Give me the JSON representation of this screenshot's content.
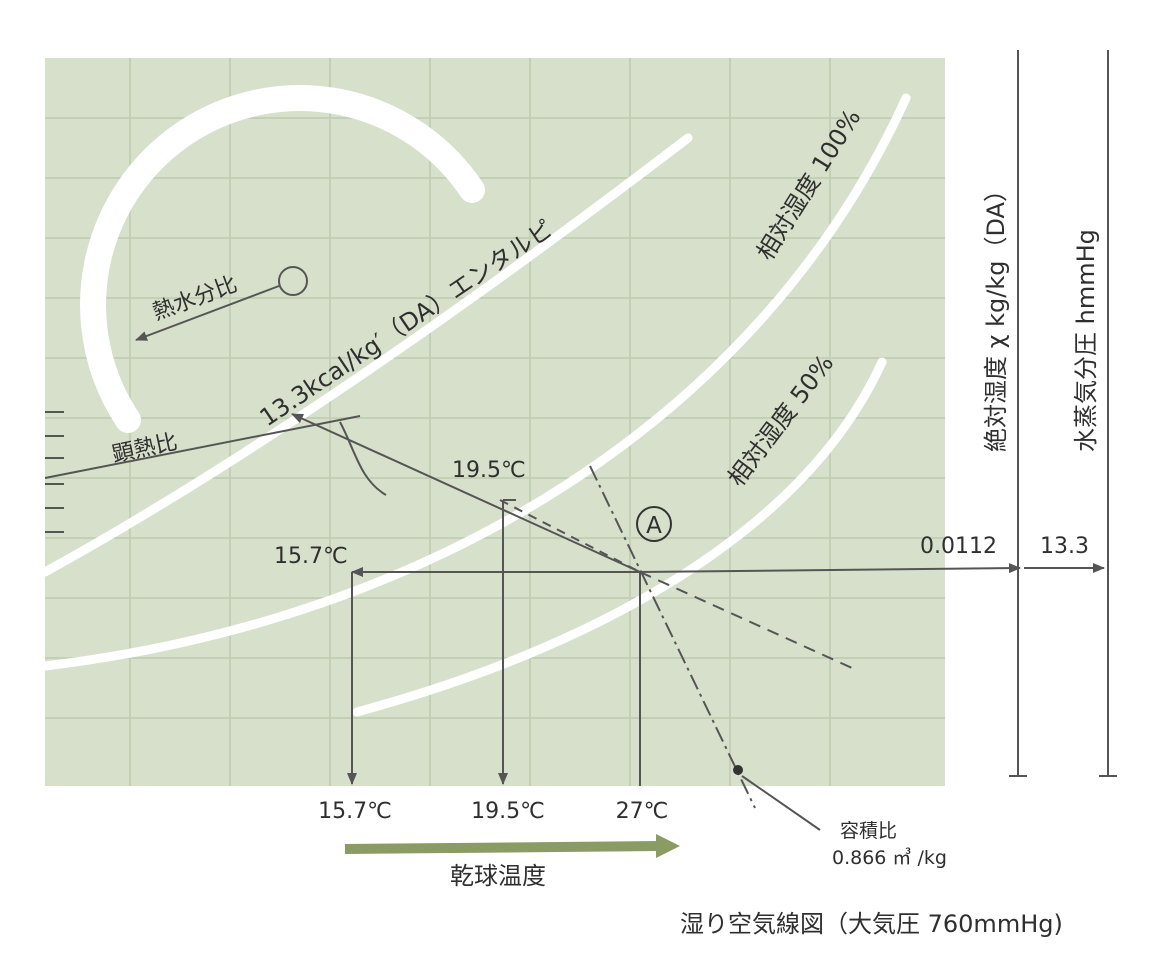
{
  "chart": {
    "enthalpy_label": "13.3kcal/kg′（DA）エンタルピ",
    "rh100_label": "相対湿度 100%",
    "rh50_label": "相対湿度 50%",
    "heat_water_ratio_label": "熱水分比",
    "sensible_heat_ratio_label": "顕熱比",
    "point_label": "A",
    "wet_bulb_temp": "19.5℃",
    "dew_point_temp": "15.7℃",
    "abs_humidity_value": "0.0112",
    "vapor_pressure_value": "13.3",
    "axis_abs_humidity": "絶対湿度 χ kg/kg（DA）",
    "axis_vapor_pressure": "水蒸気分圧 hmmHg",
    "dry_bulb_ticks": [
      "15.7℃",
      "19.5℃",
      "27℃"
    ],
    "dry_bulb_label": "乾球温度",
    "specific_volume_title": "容積比",
    "specific_volume_value": "0.866 ㎥ /kg",
    "caption": "湿り空気線図（大気圧 760mmHg)"
  },
  "colors": {
    "panel": "#d7e0cb",
    "curves": "#ffffff",
    "lines": "#555555",
    "arrow_green": "#8a9b63"
  }
}
